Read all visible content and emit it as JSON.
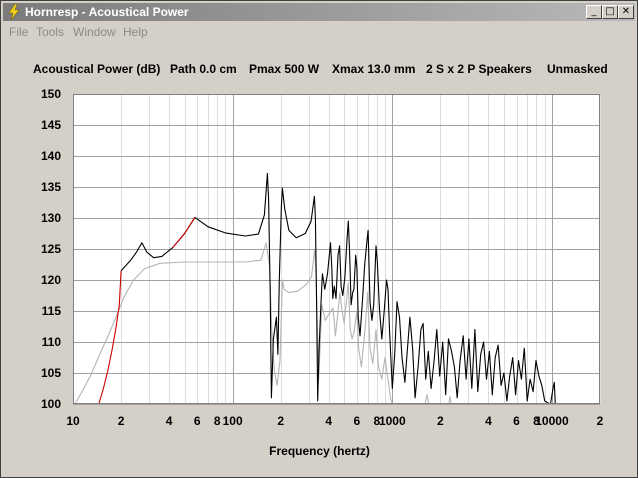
{
  "window": {
    "title": "Hornresp - Acoustical Power",
    "minimize_glyph": "_",
    "maximize_glyph": "□",
    "close_glyph": "✕",
    "app_icon": "lightning-bolt-icon"
  },
  "menu": [
    "File",
    "Tools",
    "Window",
    "Help"
  ],
  "header": {
    "measure": "Acoustical Power (dB)",
    "path": "Path 0.0 cm",
    "pmax": "Pmax 500 W",
    "xmax": "Xmax 13.0 mm",
    "speakers": "2 S x 2 P Speakers",
    "mask": "Unmasked"
  },
  "chart_data": {
    "type": "line",
    "xlabel": "Frequency (hertz)",
    "ylabel": "",
    "x_scale": "log",
    "xlim": [
      10,
      20000
    ],
    "ylim": [
      100,
      150
    ],
    "grid": true,
    "y_ticks": [
      "150",
      "145",
      "140",
      "135",
      "130",
      "125",
      "120",
      "115",
      "110",
      "105",
      "100"
    ],
    "x_tick_labels": [
      {
        "f": 10,
        "label": "10"
      },
      {
        "f": 20,
        "label": "2"
      },
      {
        "f": 40,
        "label": "4"
      },
      {
        "f": 60,
        "label": "6"
      },
      {
        "f": 80,
        "label": "8"
      },
      {
        "f": 100,
        "label": "100"
      },
      {
        "f": 200,
        "label": "2"
      },
      {
        "f": 400,
        "label": "4"
      },
      {
        "f": 600,
        "label": "6"
      },
      {
        "f": 800,
        "label": "8"
      },
      {
        "f": 1000,
        "label": "1000"
      },
      {
        "f": 2000,
        "label": "2"
      },
      {
        "f": 4000,
        "label": "4"
      },
      {
        "f": 6000,
        "label": "6"
      },
      {
        "f": 8000,
        "label": "8"
      },
      {
        "f": 10000,
        "label": "10000"
      },
      {
        "f": 20000,
        "label": "2"
      }
    ],
    "series": [
      {
        "color": "#000000",
        "points": [
          [
            20,
            121.5
          ],
          [
            23,
            123.2
          ],
          [
            25,
            124.5
          ],
          [
            27,
            126
          ],
          [
            29,
            124.5
          ],
          [
            32,
            123.6
          ],
          [
            36,
            123.8
          ],
          [
            42,
            125.2
          ],
          [
            50,
            127.5
          ],
          [
            58,
            130.1
          ],
          [
            70,
            128.6
          ],
          [
            90,
            127.6
          ],
          [
            120,
            127.1
          ],
          [
            145,
            127.4
          ],
          [
            158,
            130.5
          ],
          [
            165,
            137.2
          ],
          [
            168,
            133
          ],
          [
            172,
            118
          ],
          [
            175,
            101
          ],
          [
            180,
            110.5
          ],
          [
            188,
            114
          ],
          [
            192,
            108
          ],
          [
            196,
            120
          ],
          [
            202,
            132
          ],
          [
            205,
            134.8
          ],
          [
            212,
            131.5
          ],
          [
            225,
            128
          ],
          [
            250,
            126.8
          ],
          [
            285,
            127.5
          ],
          [
            310,
            129.5
          ],
          [
            325,
            133.5
          ],
          [
            330,
            130
          ],
          [
            336,
            115
          ],
          [
            341,
            100.5
          ],
          [
            348,
            109
          ],
          [
            357,
            116
          ],
          [
            365,
            121
          ],
          [
            378,
            118.5
          ],
          [
            393,
            121
          ],
          [
            410,
            126
          ],
          [
            418,
            122
          ],
          [
            424,
            117
          ],
          [
            433,
            119
          ],
          [
            444,
            117
          ],
          [
            457,
            124
          ],
          [
            468,
            125.5
          ],
          [
            478,
            119
          ],
          [
            490,
            117.5
          ],
          [
            505,
            120.5
          ],
          [
            520,
            126.5
          ],
          [
            530,
            129.5
          ],
          [
            540,
            124.5
          ],
          [
            552,
            116
          ],
          [
            565,
            118
          ],
          [
            575,
            118.5
          ],
          [
            590,
            124
          ],
          [
            600,
            122
          ],
          [
            612,
            114
          ],
          [
            628,
            111
          ],
          [
            650,
            116.5
          ],
          [
            672,
            122.5
          ],
          [
            695,
            126.5
          ],
          [
            705,
            128
          ],
          [
            725,
            116.5
          ],
          [
            745,
            113.5
          ],
          [
            765,
            116
          ],
          [
            790,
            125.5
          ],
          [
            805,
            123
          ],
          [
            830,
            115.5
          ],
          [
            860,
            110.5
          ],
          [
            890,
            115
          ],
          [
            920,
            120
          ],
          [
            940,
            118.5
          ],
          [
            960,
            112
          ],
          [
            1000,
            102.5
          ],
          [
            1035,
            108
          ],
          [
            1070,
            116.5
          ],
          [
            1110,
            114
          ],
          [
            1150,
            107.5
          ],
          [
            1200,
            103.5
          ],
          [
            1245,
            109
          ],
          [
            1290,
            114
          ],
          [
            1340,
            109
          ],
          [
            1390,
            101
          ],
          [
            1450,
            106
          ],
          [
            1510,
            112
          ],
          [
            1560,
            113
          ],
          [
            1620,
            104
          ],
          [
            1680,
            108.5
          ],
          [
            1750,
            102.5
          ],
          [
            1820,
            106.5
          ],
          [
            1900,
            112
          ],
          [
            1980,
            104.5
          ],
          [
            2070,
            110
          ],
          [
            2160,
            101.5
          ],
          [
            2250,
            110.5
          ],
          [
            2350,
            108.5
          ],
          [
            2450,
            106
          ],
          [
            2550,
            101
          ],
          [
            2660,
            107
          ],
          [
            2780,
            111
          ],
          [
            2900,
            104
          ],
          [
            3020,
            110.5
          ],
          [
            3150,
            102.5
          ],
          [
            3290,
            112
          ],
          [
            3430,
            102
          ],
          [
            3580,
            108
          ],
          [
            3730,
            110
          ],
          [
            3890,
            104
          ],
          [
            4060,
            108.5
          ],
          [
            4230,
            101.5
          ],
          [
            4410,
            107.5
          ],
          [
            4600,
            109.5
          ],
          [
            4800,
            103
          ],
          [
            5000,
            105
          ],
          [
            5220,
            100.5
          ],
          [
            5440,
            104.5
          ],
          [
            5680,
            107.5
          ],
          [
            5920,
            101.5
          ],
          [
            6170,
            107
          ],
          [
            6440,
            104
          ],
          [
            6710,
            109
          ],
          [
            7000,
            100.5
          ],
          [
            7300,
            104
          ],
          [
            7620,
            102
          ],
          [
            7950,
            107
          ],
          [
            8290,
            104.5
          ],
          [
            8640,
            103
          ],
          [
            9010,
            100.5
          ],
          [
            9400,
            100.2
          ],
          [
            9800,
            100
          ],
          [
            10150,
            102.5
          ],
          [
            10350,
            103.5
          ],
          [
            10500,
            100
          ]
        ]
      },
      {
        "color": "#cc0000",
        "points": [
          [
            14.5,
            100
          ],
          [
            15.5,
            102.5
          ],
          [
            16.5,
            105.3
          ],
          [
            17.5,
            108.5
          ],
          [
            18.5,
            112
          ],
          [
            19.5,
            116
          ],
          [
            20,
            121.5
          ]
        ]
      },
      {
        "color": "#cc0000",
        "points": [
          [
            42,
            125.2
          ],
          [
            50,
            127.5
          ],
          [
            58,
            130.1
          ]
        ]
      },
      {
        "color": "#b4b4b4",
        "points": [
          [
            10.3,
            100
          ],
          [
            11.5,
            102.2
          ],
          [
            13,
            104.8
          ],
          [
            15,
            108.5
          ],
          [
            17,
            111.6
          ],
          [
            19,
            114.6
          ],
          [
            21,
            117.4
          ],
          [
            24,
            120
          ],
          [
            28,
            121.8
          ],
          [
            35,
            122.7
          ],
          [
            50,
            122.9
          ],
          [
            80,
            122.9
          ],
          [
            120,
            122.9
          ],
          [
            150,
            123.2
          ],
          [
            162,
            126
          ],
          [
            170,
            122.5
          ],
          [
            176,
            112
          ],
          [
            182,
            105.5
          ],
          [
            190,
            103
          ],
          [
            198,
            107
          ],
          [
            205,
            120
          ],
          [
            210,
            118.5
          ],
          [
            225,
            118
          ],
          [
            255,
            118.2
          ],
          [
            290,
            119.3
          ],
          [
            312,
            120.5
          ],
          [
            327,
            125
          ],
          [
            333,
            120.5
          ],
          [
            340,
            111
          ],
          [
            346,
            104
          ],
          [
            354,
            110
          ],
          [
            362,
            116
          ],
          [
            380,
            113.5
          ],
          [
            400,
            114.5
          ],
          [
            425,
            115.5
          ],
          [
            440,
            111
          ],
          [
            456,
            114.5
          ],
          [
            470,
            118
          ],
          [
            485,
            115
          ],
          [
            500,
            113
          ],
          [
            520,
            117.5
          ],
          [
            530,
            119.5
          ],
          [
            545,
            112
          ],
          [
            560,
            110.5
          ],
          [
            575,
            111.5
          ],
          [
            600,
            115
          ],
          [
            615,
            109
          ],
          [
            640,
            106
          ],
          [
            680,
            113
          ],
          [
            700,
            118
          ],
          [
            725,
            109
          ],
          [
            755,
            106.5
          ],
          [
            790,
            112
          ],
          [
            820,
            106
          ],
          [
            860,
            104
          ],
          [
            900,
            107.5
          ],
          [
            940,
            104
          ],
          [
            975,
            101
          ],
          [
            1000,
            99.8
          ]
        ]
      },
      {
        "color": "#b4b4b4",
        "points": [
          [
            1600,
            99.8
          ],
          [
            1650,
            101.5
          ],
          [
            1700,
            99.8
          ]
        ]
      },
      {
        "color": "#b4b4b4",
        "points": [
          [
            2250,
            99.8
          ],
          [
            2300,
            101.2
          ],
          [
            2350,
            99.8
          ]
        ]
      }
    ]
  }
}
